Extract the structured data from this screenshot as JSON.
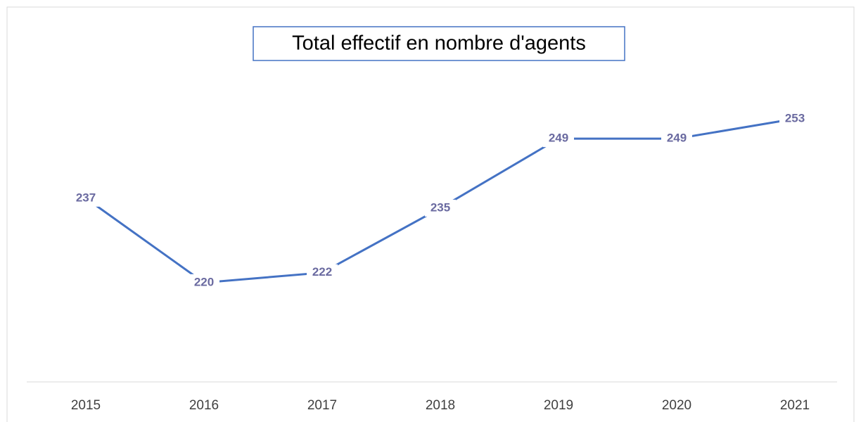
{
  "chart_data": {
    "type": "line",
    "title": "Total effectif en nombre d'agents",
    "categories": [
      "2015",
      "2016",
      "2017",
      "2018",
      "2019",
      "2020",
      "2021"
    ],
    "values": [
      237,
      220,
      222,
      235,
      249,
      249,
      253
    ],
    "color": "#4472c4",
    "label_color": "#6a6aa0",
    "ylim": [
      200,
      268
    ]
  }
}
